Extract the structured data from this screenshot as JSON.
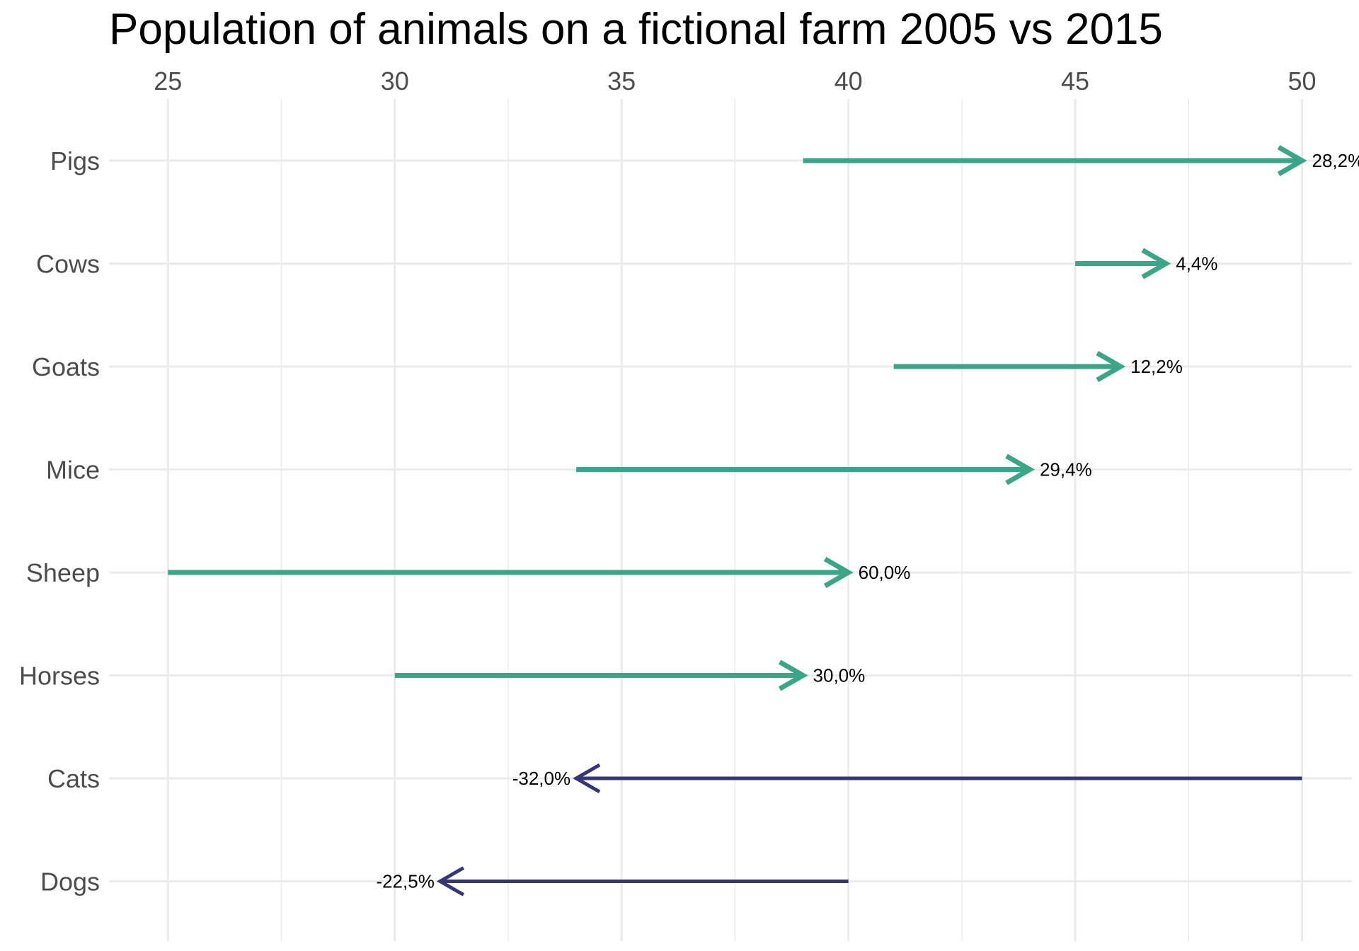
{
  "chart_data": {
    "type": "arrow",
    "title": "Population of animals on a fictional farm 2005 vs 2015",
    "xlabel": "",
    "ylabel": "",
    "x_axis_position": "top",
    "xlim": [
      23.7,
      51.1
    ],
    "x_ticks": [
      25,
      30,
      35,
      40,
      45,
      50
    ],
    "x_tick_labels": [
      "25",
      "30",
      "35",
      "40",
      "45",
      "50"
    ],
    "grid": true,
    "legend": "none",
    "categories": [
      "Pigs",
      "Cows",
      "Goats",
      "Mice",
      "Sheep",
      "Horses",
      "Cats",
      "Dogs"
    ],
    "series": [
      {
        "from": 39,
        "to": 50,
        "label": "28,2%"
      },
      {
        "from": 45,
        "to": 47,
        "label": "4,4%"
      },
      {
        "from": 41,
        "to": 46,
        "label": "12,2%"
      },
      {
        "from": 34,
        "to": 44,
        "label": "29,4%"
      },
      {
        "from": 25,
        "to": 40,
        "label": "60,0%"
      },
      {
        "from": 30,
        "to": 39,
        "label": "30,0%"
      },
      {
        "from": 50,
        "to": 34,
        "label": "-32,0%"
      },
      {
        "from": 40,
        "to": 31,
        "label": "-22,5%"
      }
    ],
    "colors": {
      "increase": "#3aa688",
      "decrease": "#343676"
    }
  }
}
